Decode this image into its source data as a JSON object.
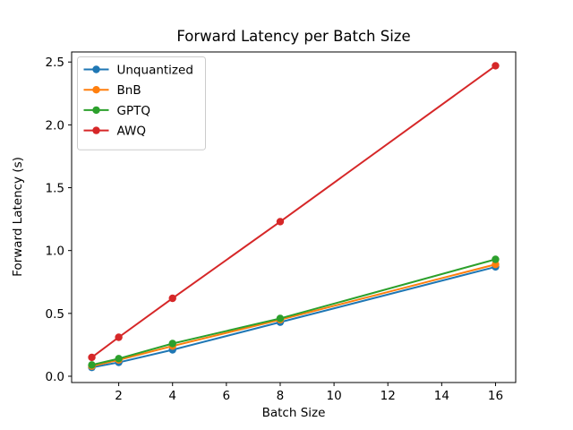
{
  "figure": {
    "background": "#ffffff",
    "spine_color": "#000000"
  },
  "chart_data": {
    "type": "line",
    "title": "Forward Latency per Batch Size",
    "xlabel": "Batch Size",
    "ylabel": "Forward Latency (s)",
    "x": [
      1,
      2,
      4,
      8,
      16
    ],
    "series": [
      {
        "name": "Unquantized",
        "color": "#1f77b4",
        "values": [
          0.07,
          0.11,
          0.21,
          0.43,
          0.87
        ]
      },
      {
        "name": "BnB",
        "color": "#ff7f0e",
        "values": [
          0.08,
          0.13,
          0.24,
          0.45,
          0.89
        ]
      },
      {
        "name": "GPTQ",
        "color": "#2ca02c",
        "values": [
          0.09,
          0.14,
          0.26,
          0.46,
          0.93
        ]
      },
      {
        "name": "AWQ",
        "color": "#d62728",
        "values": [
          0.15,
          0.31,
          0.62,
          1.23,
          2.47
        ]
      }
    ],
    "xlim": [
      0.25,
      16.75
    ],
    "ylim": [
      -0.05,
      2.58
    ],
    "xticks": [
      2,
      4,
      6,
      8,
      10,
      12,
      14,
      16
    ],
    "xticklabels": [
      "2",
      "4",
      "6",
      "8",
      "10",
      "12",
      "14",
      "16"
    ],
    "yticks": [
      0.0,
      0.5,
      1.0,
      1.5,
      2.0,
      2.5
    ],
    "yticklabels": [
      "0.0",
      "0.5",
      "1.0",
      "1.5",
      "2.0",
      "2.5"
    ],
    "grid": false,
    "legend_position": "upper left",
    "marker": "o"
  }
}
